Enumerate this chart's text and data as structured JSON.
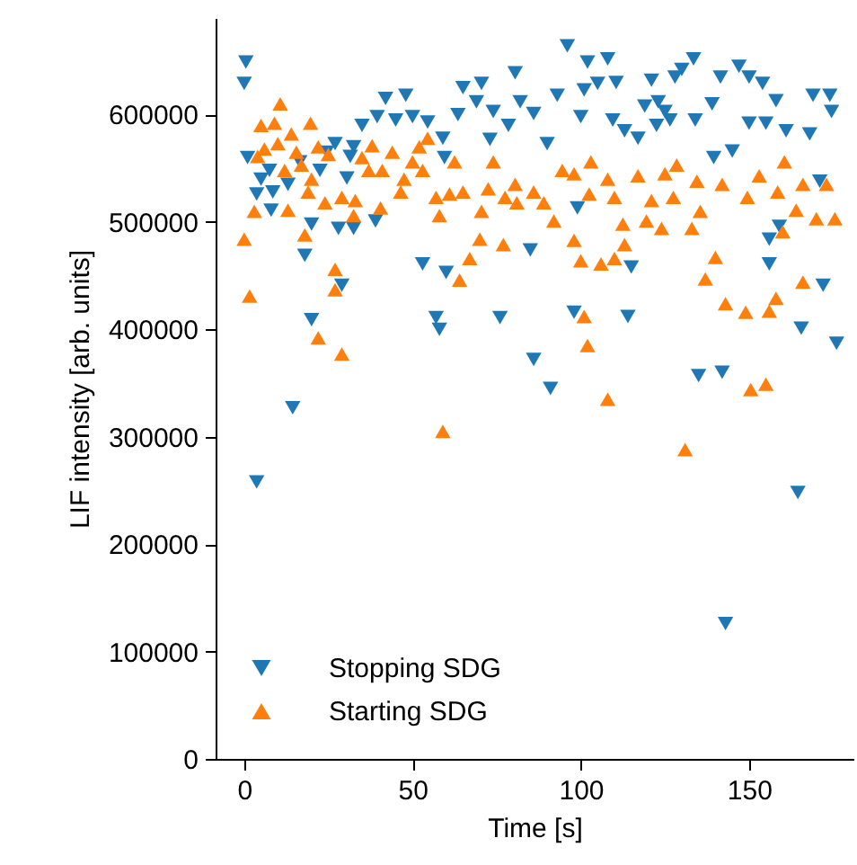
{
  "chart_data": {
    "type": "scatter",
    "xlabel": "Time [s]",
    "ylabel": "LIF intensity [arb. units]",
    "xlim": [
      -8.5,
      181
    ],
    "xticks": [
      0,
      50,
      100,
      150
    ],
    "ylim": [
      0,
      690000
    ],
    "yticks": [
      0,
      100000,
      200000,
      300000,
      400000,
      500000,
      600000
    ],
    "grid": false,
    "legend": "bottom left",
    "series": [
      {
        "name": "Stopping SDG",
        "color": "#1f77b4",
        "marker": "triangle-down",
        "x": [
          0.5,
          0,
          3.7,
          14.4,
          53,
          60,
          57,
          58,
          76,
          86,
          20,
          29,
          18,
          98,
          91,
          135,
          142,
          165.5,
          176,
          172,
          156,
          115,
          85,
          99,
          156,
          159,
          171,
          143,
          164.5,
          114,
          96,
          108,
          102,
          133.5,
          147,
          130,
          128,
          121,
          141.5,
          150,
          154,
          110.5,
          105,
          101,
          169,
          174,
          174.5,
          168,
          161,
          155,
          150,
          134,
          126.5,
          122.5,
          117,
          113,
          109.5,
          100,
          90,
          86,
          82,
          93,
          123,
          139,
          145,
          139.5,
          158,
          125,
          119,
          80.5,
          48,
          42,
          65,
          70.5,
          69,
          74,
          35,
          39.5,
          45,
          50,
          54.5,
          63.5,
          59,
          73,
          78.5,
          27,
          32.5,
          24.5,
          1,
          7.5,
          5,
          3.7,
          8.5,
          8,
          13,
          16.5,
          20,
          22.5,
          28,
          32.5,
          31.5,
          39,
          30.5,
          59.5
        ],
        "values": [
          649000,
          629000,
          258000,
          327000,
          461000,
          453000,
          411000,
          400000,
          411000,
          372000,
          409000,
          441000,
          469000,
          416000,
          345000,
          357000,
          360000,
          401000,
          387000,
          441000,
          461000,
          458000,
          474000,
          513000,
          484000,
          496000,
          538000,
          126000,
          248000,
          412000,
          664000,
          652000,
          649000,
          652000,
          645000,
          642000,
          635000,
          632000,
          635000,
          635000,
          629000,
          630000,
          629000,
          623000,
          618000,
          618000,
          603000,
          582000,
          585000,
          592000,
          592000,
          595000,
          595000,
          590000,
          578000,
          585000,
          595000,
          598000,
          573000,
          601000,
          612000,
          618000,
          612000,
          610000,
          566000,
          560000,
          613000,
          603000,
          608000,
          639000,
          618000,
          615000,
          625000,
          629000,
          612000,
          603000,
          590000,
          598000,
          595000,
          598000,
          593000,
          600000,
          578000,
          577000,
          590000,
          573000,
          570000,
          565000,
          560000,
          548000,
          540000,
          526000,
          528000,
          511000,
          535000,
          556000,
          498000,
          548000,
          494000,
          494000,
          561000,
          501000,
          541000,
          560000
        ]
      },
      {
        "name": "Starting SDG",
        "color": "#ff7f0e",
        "marker": "triangle-up",
        "x": [
          0,
          1.6,
          27,
          27,
          22,
          29,
          59,
          18,
          3,
          64,
          67,
          70,
          77,
          58,
          108,
          102,
          101,
          131,
          150.5,
          155,
          143,
          149,
          156,
          158,
          166,
          137,
          140,
          98,
          100,
          106,
          110,
          113,
          160,
          10.7,
          5,
          9,
          19.7,
          14,
          6,
          4,
          10,
          15.5,
          22,
          25,
          12,
          17,
          20,
          19,
          13,
          24,
          29,
          33,
          32.5,
          40.5,
          35,
          38,
          44,
          37,
          41,
          47.5,
          52,
          54.5,
          50,
          53,
          46.5,
          62.5,
          57,
          65,
          72.5,
          80.5,
          86,
          81,
          74,
          61,
          70.5,
          77.5,
          94.5,
          98,
          103,
          108,
          102.5,
          110,
          117,
          121,
          125,
          128.5,
          127.5,
          134.5,
          135.5,
          142,
          149.5,
          153,
          160.5,
          158.5,
          166,
          173,
          170,
          175.5,
          164,
          112.5,
          119.5,
          133,
          92,
          89,
          124
        ],
        "values": [
          484000,
          431000,
          456000,
          437000,
          392000,
          377000,
          305000,
          488000,
          510000,
          446000,
          466000,
          484000,
          479000,
          506000,
          335000,
          385000,
          412000,
          288000,
          344000,
          349000,
          424000,
          416000,
          417000,
          429000,
          444000,
          447000,
          467000,
          483000,
          464000,
          461000,
          466000,
          479000,
          491000,
          610000,
          590000,
          592000,
          592000,
          582000,
          568000,
          561000,
          573000,
          565000,
          570000,
          563000,
          548000,
          553000,
          540000,
          528000,
          511000,
          518000,
          523000,
          520000,
          506000,
          513000,
          560000,
          571000,
          565000,
          548000,
          548000,
          540000,
          570000,
          578000,
          556000,
          548000,
          528000,
          556000,
          523000,
          528000,
          531000,
          535000,
          528000,
          518000,
          556000,
          526000,
          510000,
          523000,
          548000,
          545000,
          556000,
          540000,
          526000,
          523000,
          543000,
          520000,
          545000,
          553000,
          523000,
          538000,
          510000,
          535000,
          523000,
          543000,
          556000,
          528000,
          535000,
          535000,
          503000,
          503000,
          511000,
          498000,
          501000,
          494000,
          501000,
          518000,
          494000
        ]
      }
    ]
  }
}
